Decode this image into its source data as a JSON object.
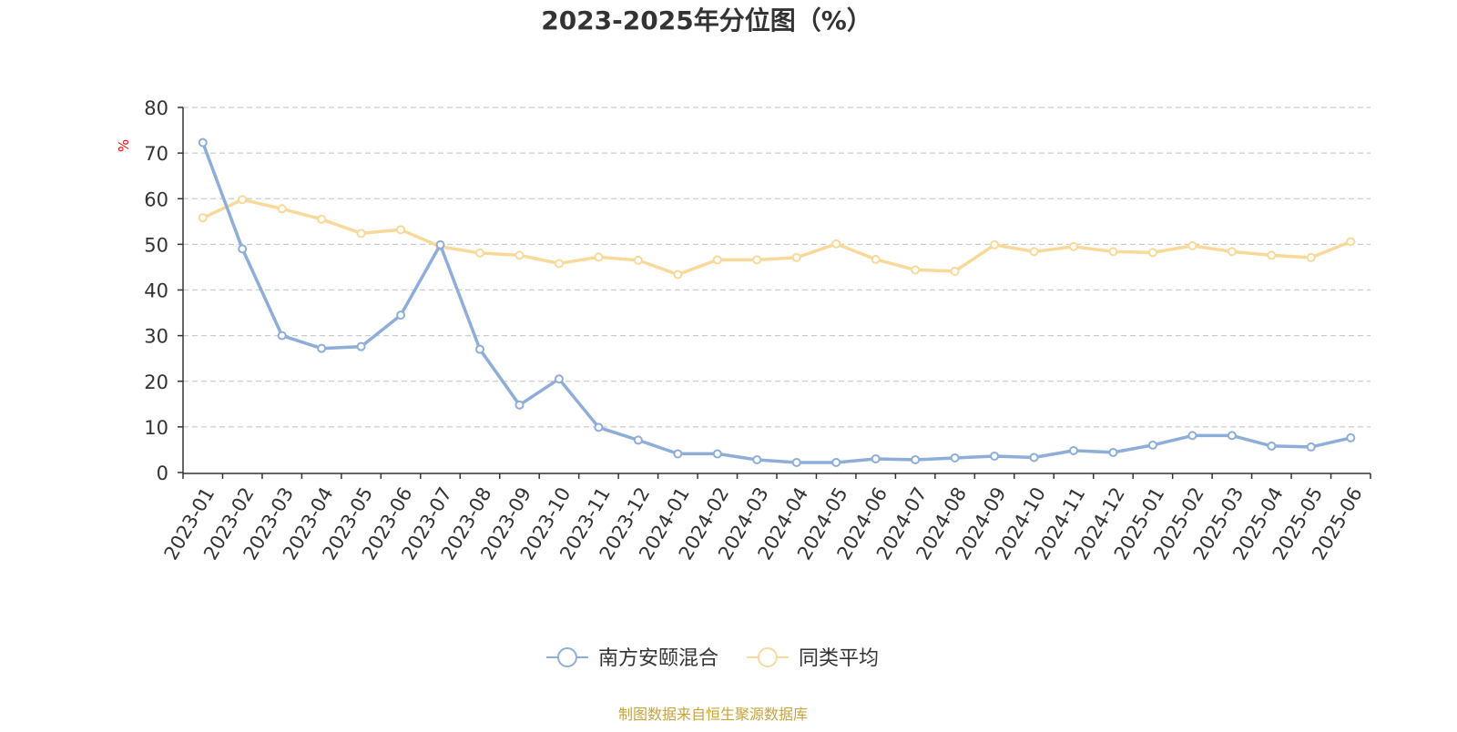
{
  "chart_data": {
    "type": "line",
    "title": "2023-2025年分位图（%）",
    "ylabel": "%",
    "xlabel": "",
    "ylim": [
      0,
      80
    ],
    "yticks": [
      0,
      10,
      20,
      30,
      40,
      50,
      60,
      70,
      80
    ],
    "grid": true,
    "legend_position": "bottom-center",
    "categories": [
      "2023-01",
      "2023-02",
      "2023-03",
      "2023-04",
      "2023-05",
      "2023-06",
      "2023-07",
      "2023-08",
      "2023-09",
      "2023-10",
      "2023-11",
      "2023-12",
      "2024-01",
      "2024-02",
      "2024-03",
      "2024-04",
      "2024-05",
      "2024-06",
      "2024-07",
      "2024-08",
      "2024-09",
      "2024-10",
      "2024-11",
      "2024-12",
      "2025-01",
      "2025-02",
      "2025-03",
      "2025-04",
      "2025-05",
      "2025-06"
    ],
    "series": [
      {
        "name": "南方安颐混合",
        "color": "#8eadd9",
        "values": [
          72.3,
          49.0,
          30.0,
          27.2,
          27.6,
          34.5,
          49.9,
          27.0,
          14.8,
          20.5,
          9.9,
          7.1,
          4.1,
          4.1,
          2.8,
          2.2,
          2.2,
          3.0,
          2.8,
          3.2,
          3.6,
          3.3,
          4.8,
          4.4,
          6.0,
          8.1,
          8.1,
          5.8,
          5.6,
          7.6
        ]
      },
      {
        "name": "同类平均",
        "color": "#f9d99a",
        "values": [
          55.8,
          59.8,
          57.8,
          55.5,
          52.4,
          53.2,
          49.5,
          48.1,
          47.6,
          45.8,
          47.2,
          46.5,
          43.4,
          46.6,
          46.6,
          47.1,
          50.1,
          46.7,
          44.4,
          44.1,
          49.9,
          48.4,
          49.5,
          48.4,
          48.2,
          49.7,
          48.4,
          47.6,
          47.1,
          50.6
        ]
      }
    ]
  },
  "footer": {
    "source": "制图数据来自恒生聚源数据库"
  },
  "colors": {
    "title": "#333333",
    "axis": "#333333",
    "grid": "#cccccc",
    "ylabel": "#ff0000",
    "source": "#c9a33a"
  }
}
